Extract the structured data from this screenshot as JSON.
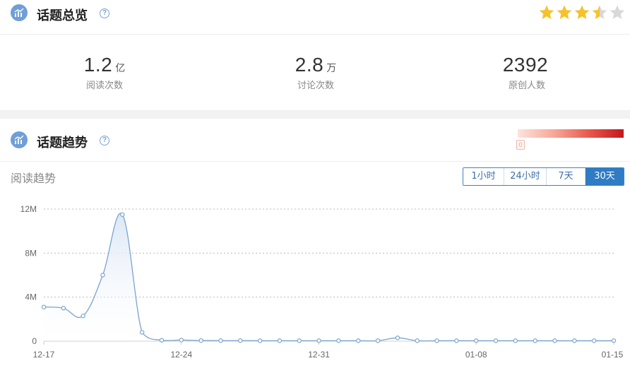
{
  "overview": {
    "title": "话题总览",
    "help": "?",
    "rating_stars": 3.5,
    "rating_max": 5,
    "stats": [
      {
        "value": "1.2",
        "unit": "亿",
        "label": "阅读次数"
      },
      {
        "value": "2.8",
        "unit": "万",
        "label": "讨论次数"
      },
      {
        "value": "2392",
        "unit": "",
        "label": "原创人数"
      }
    ]
  },
  "trend": {
    "title": "话题趋势",
    "help": "?",
    "heat_marker": "0",
    "subtitle": "阅读趋势",
    "tabs": [
      {
        "label": "1小时",
        "active": false
      },
      {
        "label": "24小时",
        "active": false
      },
      {
        "label": "7天",
        "active": false
      },
      {
        "label": "30天",
        "active": true
      }
    ]
  },
  "colors": {
    "line": "#7ba3cf",
    "area_top": "#d9e6f5",
    "star": "#f5c22c",
    "star_empty": "#d8d8d8",
    "accent": "#2e7cc4"
  },
  "chart_data": {
    "type": "area",
    "x": [
      "12-17",
      "12-18",
      "12-19",
      "12-20",
      "12-21",
      "12-22",
      "12-23",
      "12-24",
      "12-25",
      "12-26",
      "12-27",
      "12-28",
      "12-29",
      "12-30",
      "12-31",
      "01-01",
      "01-02",
      "01-03",
      "01-04",
      "01-05",
      "01-06",
      "01-07",
      "01-08",
      "01-09",
      "01-10",
      "01-11",
      "01-12",
      "01-13",
      "01-14",
      "01-15"
    ],
    "x_ticks": [
      "12-17",
      "12-24",
      "12-31",
      "01-08",
      "01-15"
    ],
    "values": [
      3100000,
      3000000,
      2300000,
      6000000,
      11500000,
      800000,
      80000,
      100000,
      60000,
      50000,
      50000,
      40000,
      40000,
      40000,
      40000,
      40000,
      40000,
      40000,
      300000,
      40000,
      40000,
      40000,
      40000,
      40000,
      40000,
      40000,
      40000,
      40000,
      40000,
      40000
    ],
    "y_ticks": [
      "0",
      "4M",
      "8M",
      "12M"
    ],
    "y_tick_values": [
      0,
      4000000,
      8000000,
      12000000
    ],
    "ylim": [
      0,
      12000000
    ],
    "grid": true
  }
}
